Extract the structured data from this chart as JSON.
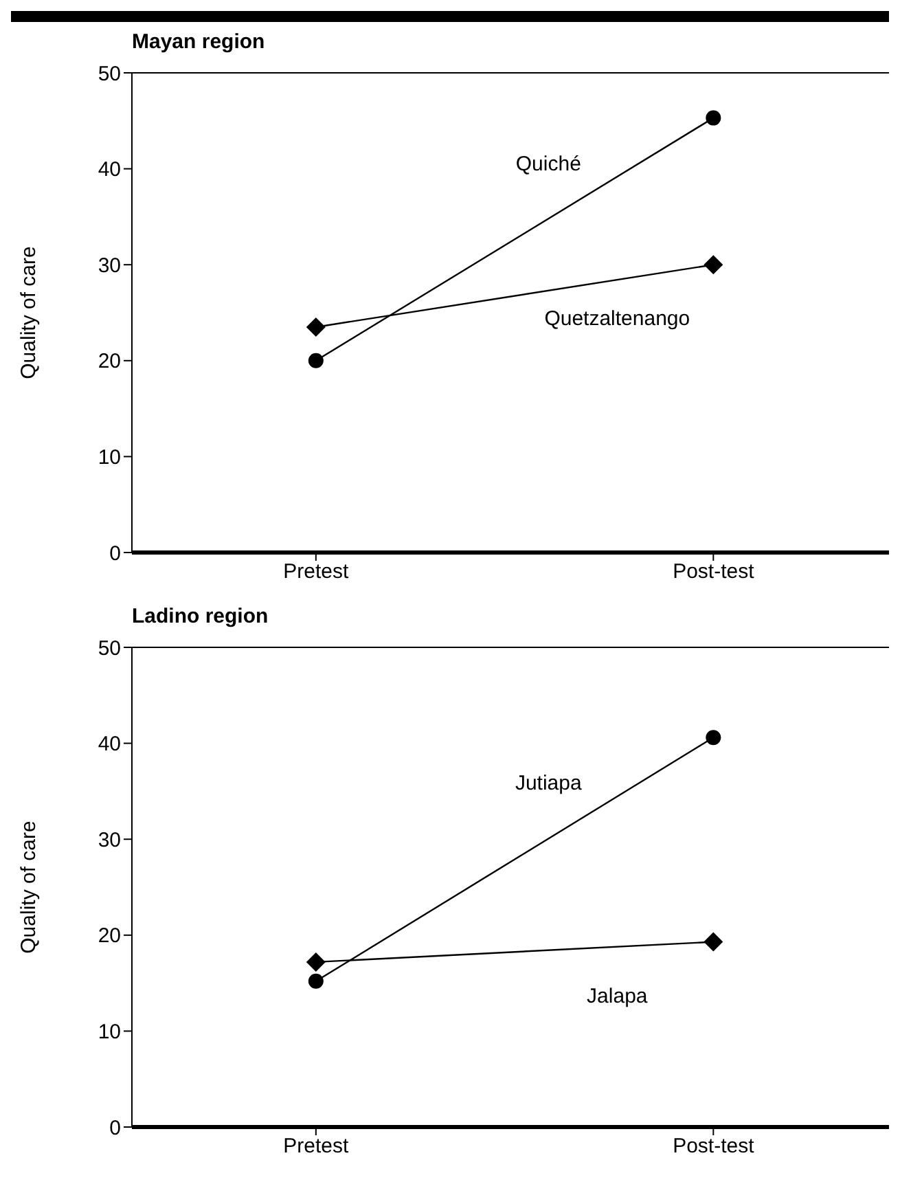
{
  "chart_data": [
    {
      "type": "line",
      "title": "Mayan region",
      "ylabel": "Quality of care",
      "categories": [
        "Pretest",
        "Post-test"
      ],
      "ylim": [
        0,
        50
      ],
      "yticks": [
        0,
        10,
        20,
        30,
        40,
        50
      ],
      "grid": false,
      "legend": false,
      "series": [
        {
          "name": "Quiché",
          "color": "#000000",
          "marker": "circle",
          "values": [
            20,
            45.3
          ]
        },
        {
          "name": "Quetzaltenango",
          "color": "#000000",
          "marker": "diamond",
          "values": [
            23.5,
            30
          ]
        }
      ]
    },
    {
      "type": "line",
      "title": "Ladino region",
      "ylabel": "Quality of care",
      "categories": [
        "Pretest",
        "Post-test"
      ],
      "ylim": [
        0,
        50
      ],
      "yticks": [
        0,
        10,
        20,
        30,
        40,
        50
      ],
      "grid": false,
      "legend": false,
      "series": [
        {
          "name": "Jutiapa",
          "color": "#000000",
          "marker": "circle",
          "values": [
            15.2,
            40.6
          ]
        },
        {
          "name": "Jalapa",
          "color": "#000000",
          "marker": "diamond",
          "values": [
            17.2,
            19.3
          ]
        }
      ]
    }
  ]
}
